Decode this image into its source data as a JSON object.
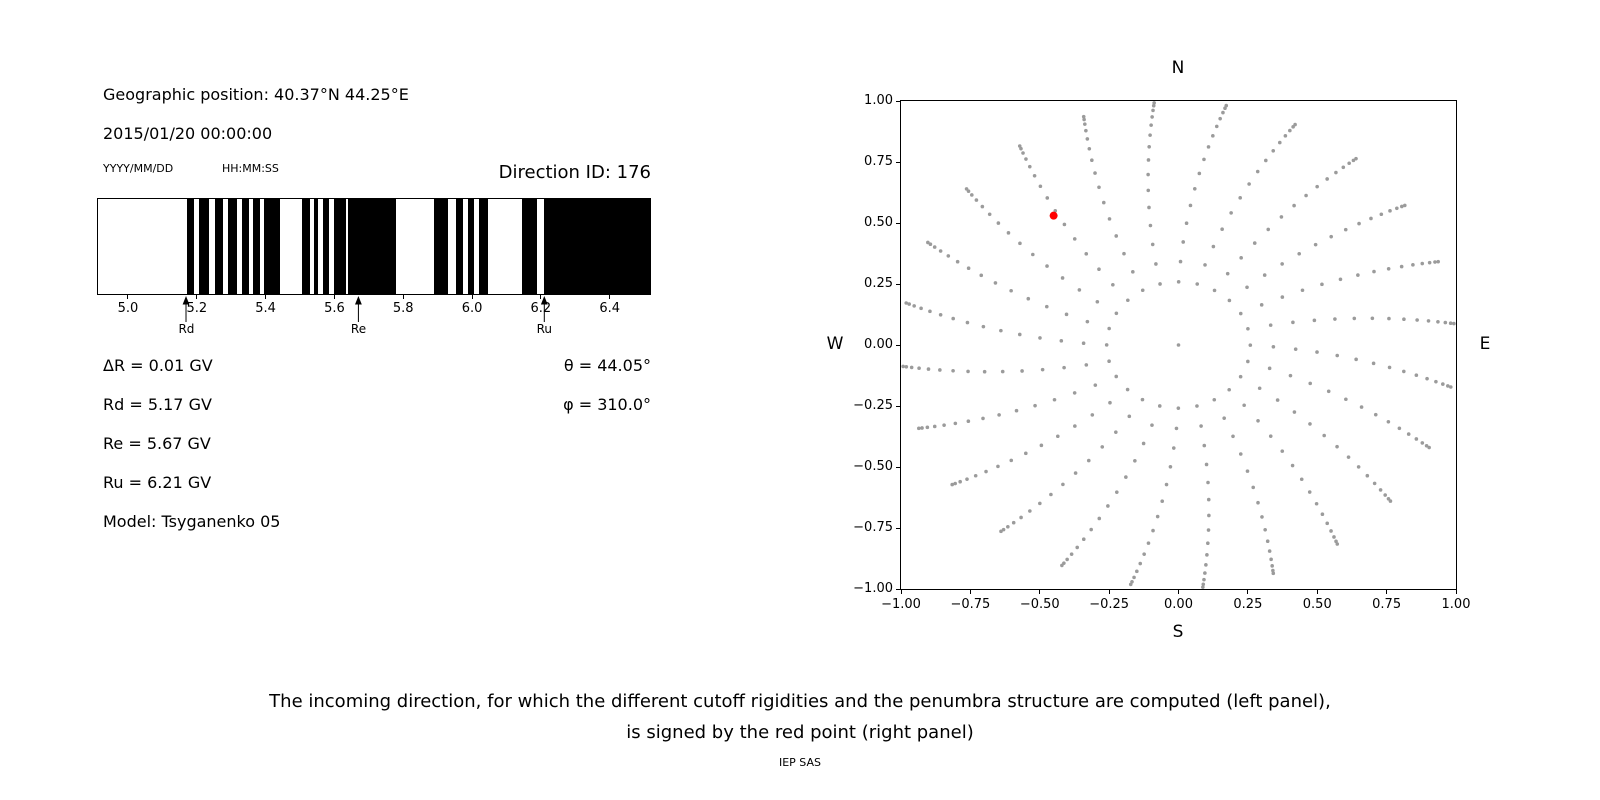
{
  "header": {
    "geo_position": "Geographic position: 40.37°N 44.25°E",
    "datetime": "2015/01/20 00:00:00",
    "date_format": "YYYY/MM/DD",
    "time_format": "HH:MM:SS",
    "direction_id": "Direction ID: 176"
  },
  "left_panel": {
    "delta_r": "ΔR = 0.01 GV",
    "rd": "Rd = 5.17 GV",
    "re": "Re = 5.67 GV",
    "ru": "Ru = 6.21 GV",
    "model": "Model: Tsyganenko 05",
    "theta": "θ = 44.05°",
    "phi": "φ = 310.0°"
  },
  "caption": {
    "line1": "The incoming direction, for which the different cutoff rigidities and the penumbra structure are computed (left panel),",
    "line2": "is signed by the red point (right panel)",
    "credit": "IEP SAS"
  },
  "chart_data": [
    {
      "type": "bar",
      "name": "penumbra-structure",
      "description": "Cutoff rigidity penumbra: black bands = forbidden rigidities (GV), white = allowed",
      "xlim": [
        4.91,
        6.52
      ],
      "xticks": [
        5.0,
        5.2,
        5.4,
        5.6,
        5.8,
        6.0,
        6.2,
        6.4
      ],
      "xtick_labels": [
        "5.0",
        "5.2",
        "5.4",
        "5.6",
        "5.8",
        "6.0",
        "6.2",
        "6.4"
      ],
      "bar_color": "#000000",
      "black_intervals": [
        [
          5.17,
          5.19
        ],
        [
          5.205,
          5.235
        ],
        [
          5.25,
          5.275
        ],
        [
          5.29,
          5.315
        ],
        [
          5.33,
          5.35
        ],
        [
          5.362,
          5.382
        ],
        [
          5.395,
          5.44
        ],
        [
          5.505,
          5.527
        ],
        [
          5.54,
          5.552
        ],
        [
          5.565,
          5.585
        ],
        [
          5.598,
          5.632
        ],
        [
          5.64,
          5.78
        ],
        [
          5.89,
          5.932
        ],
        [
          5.955,
          5.975
        ],
        [
          5.988,
          6.008
        ],
        [
          6.02,
          6.048
        ],
        [
          6.148,
          6.19
        ],
        [
          6.212,
          6.52
        ]
      ],
      "markers": [
        {
          "label": "Rd",
          "value": 5.17
        },
        {
          "label": "Re",
          "value": 5.67
        },
        {
          "label": "Ru",
          "value": 6.21
        }
      ]
    },
    {
      "type": "scatter",
      "name": "incoming-directions",
      "description": "Grid of incoming directions projected on horizontal plane; red point = selected direction ID 176 (theta 44.05 deg, phi 310 deg)",
      "xlim": [
        -1,
        1
      ],
      "ylim": [
        -1,
        1
      ],
      "xticks": [
        -1,
        -0.75,
        -0.5,
        -0.25,
        0,
        0.25,
        0.5,
        0.75,
        1
      ],
      "tick_labels": [
        "−1.00",
        "−0.75",
        "−0.50",
        "−0.25",
        "0.00",
        "0.25",
        "0.50",
        "0.75",
        "1.00"
      ],
      "compass": {
        "top": "N",
        "bottom": "S",
        "left": "W",
        "right": "E"
      },
      "grid": {
        "azimuth_step_deg": 15,
        "zenith_start_deg": 15,
        "zenith_end_deg": 85,
        "zenith_step_deg": 5,
        "radius_rule": "sin(zenith)",
        "twist_deg_at_edge": 10
      },
      "point_color": "#9b9b9b",
      "red_point": {
        "x": -0.45,
        "y": 0.53,
        "color": "#ff0000"
      }
    }
  ]
}
